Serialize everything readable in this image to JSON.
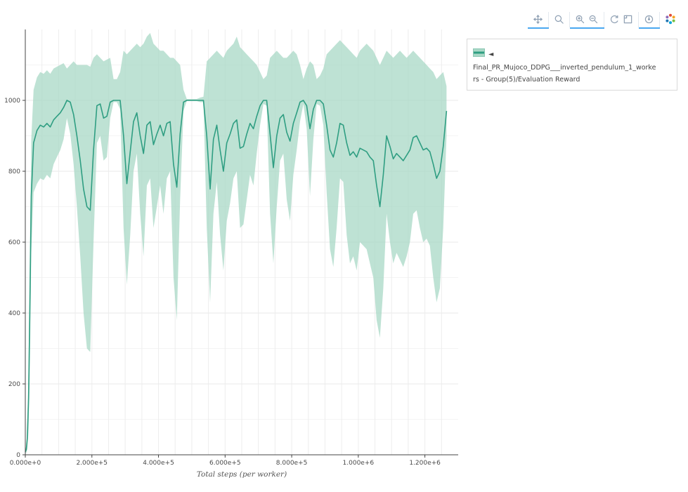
{
  "modebar": {
    "buttons": [
      {
        "name": "pan",
        "active": true
      },
      {
        "name": "box-zoom",
        "active": false
      },
      {
        "name": "zoom-in",
        "active": true
      },
      {
        "name": "zoom-out",
        "active": true
      },
      {
        "name": "autoscale",
        "active": false
      },
      {
        "name": "reset-axes",
        "active": false
      },
      {
        "name": "hover-closest",
        "active": true
      },
      {
        "name": "plotly-logo",
        "active": false
      }
    ],
    "active_underline_color": "#4aa8f0",
    "icon_color": "#8fa0b3"
  },
  "legend": {
    "line1": "◄ Final_PR_Mujoco_DDPG___inverted_pendulum_1_worke",
    "line2": "rs - Group(5)/Evaluation Reward",
    "swatch_fill": "#a8d8c6",
    "swatch_line": "#2f9e82"
  },
  "chart_data": {
    "type": "line",
    "title": "",
    "xlabel": "Total steps (per worker)",
    "ylabel": "",
    "xlim": [
      0,
      1300000
    ],
    "ylim": [
      0,
      1200
    ],
    "grid": true,
    "legend_position": "outside-right",
    "minor_x_grid_step": 50000,
    "xticks": {
      "values": [
        0,
        200000,
        400000,
        600000,
        800000,
        1000000,
        1200000
      ],
      "labels": [
        "0.000e+0",
        "2.000e+5",
        "4.000e+5",
        "6.000e+5",
        "8.000e+5",
        "1.000e+6",
        "1.200e+6"
      ]
    },
    "yticks": {
      "values": [
        0,
        200,
        400,
        600,
        800,
        1000
      ],
      "labels": [
        "0",
        "200",
        "400",
        "600",
        "800",
        "1000"
      ]
    },
    "series": [
      {
        "name": "Final_PR_Mujoco_DDPG___inverted_pendulum_1_workers - Group(5)/Evaluation Reward",
        "line_color": "#2f9e82",
        "band_color": "#a8d8c6",
        "band_opacity": 0.75,
        "points_format": [
          "x",
          "mean",
          "band_low",
          "band_high"
        ],
        "points": [
          [
            0,
            8,
            3,
            13
          ],
          [
            3000,
            15,
            6,
            24
          ],
          [
            6000,
            45,
            15,
            80
          ],
          [
            10000,
            160,
            70,
            250
          ],
          [
            14000,
            430,
            260,
            600
          ],
          [
            18000,
            730,
            570,
            890
          ],
          [
            25000,
            880,
            740,
            1030
          ],
          [
            35000,
            915,
            765,
            1065
          ],
          [
            45000,
            930,
            780,
            1080
          ],
          [
            55000,
            925,
            775,
            1075
          ],
          [
            65000,
            935,
            790,
            1085
          ],
          [
            75000,
            925,
            780,
            1075
          ],
          [
            85000,
            945,
            820,
            1090
          ],
          [
            95000,
            955,
            840,
            1095
          ],
          [
            105000,
            965,
            860,
            1100
          ],
          [
            115000,
            980,
            890,
            1105
          ],
          [
            125000,
            1000,
            950,
            1090
          ],
          [
            135000,
            995,
            905,
            1100
          ],
          [
            145000,
            960,
            820,
            1110
          ],
          [
            155000,
            900,
            700,
            1100
          ],
          [
            165000,
            830,
            560,
            1100
          ],
          [
            175000,
            750,
            400,
            1100
          ],
          [
            185000,
            700,
            300,
            1100
          ],
          [
            195000,
            690,
            290,
            1095
          ],
          [
            205000,
            860,
            600,
            1120
          ],
          [
            215000,
            985,
            880,
            1130
          ],
          [
            225000,
            990,
            900,
            1120
          ],
          [
            235000,
            950,
            830,
            1110
          ],
          [
            245000,
            955,
            840,
            1115
          ],
          [
            255000,
            995,
            950,
            1120
          ],
          [
            265000,
            1000,
            995,
            1060
          ],
          [
            275000,
            1000,
            995,
            1060
          ],
          [
            285000,
            1000,
            975,
            1080
          ],
          [
            295000,
            900,
            640,
            1140
          ],
          [
            305000,
            765,
            480,
            1130
          ],
          [
            315000,
            855,
            620,
            1140
          ],
          [
            325000,
            940,
            800,
            1150
          ],
          [
            335000,
            965,
            850,
            1160
          ],
          [
            345000,
            900,
            680,
            1150
          ],
          [
            355000,
            850,
            560,
            1160
          ],
          [
            365000,
            930,
            760,
            1180
          ],
          [
            375000,
            940,
            780,
            1190
          ],
          [
            385000,
            875,
            640,
            1160
          ],
          [
            395000,
            905,
            700,
            1150
          ],
          [
            405000,
            930,
            760,
            1140
          ],
          [
            415000,
            900,
            680,
            1140
          ],
          [
            425000,
            935,
            780,
            1130
          ],
          [
            435000,
            940,
            800,
            1120
          ],
          [
            445000,
            820,
            500,
            1120
          ],
          [
            455000,
            755,
            380,
            1110
          ],
          [
            465000,
            905,
            720,
            1100
          ],
          [
            475000,
            995,
            970,
            1030
          ],
          [
            485000,
            1000,
            998,
            1004
          ],
          [
            495000,
            1000,
            998,
            1004
          ],
          [
            505000,
            1000,
            998,
            1004
          ],
          [
            515000,
            1000,
            998,
            1004
          ],
          [
            525000,
            1000,
            995,
            1008
          ],
          [
            535000,
            1000,
            995,
            1010
          ],
          [
            545000,
            900,
            640,
            1110
          ],
          [
            555000,
            750,
            430,
            1120
          ],
          [
            565000,
            890,
            680,
            1130
          ],
          [
            575000,
            930,
            770,
            1140
          ],
          [
            585000,
            860,
            620,
            1130
          ],
          [
            595000,
            800,
            520,
            1120
          ],
          [
            605000,
            880,
            660,
            1140
          ],
          [
            615000,
            905,
            710,
            1150
          ],
          [
            625000,
            935,
            780,
            1160
          ],
          [
            635000,
            945,
            800,
            1180
          ],
          [
            645000,
            865,
            640,
            1150
          ],
          [
            655000,
            870,
            650,
            1140
          ],
          [
            665000,
            905,
            720,
            1130
          ],
          [
            675000,
            935,
            790,
            1120
          ],
          [
            685000,
            920,
            760,
            1110
          ],
          [
            695000,
            955,
            850,
            1100
          ],
          [
            705000,
            985,
            930,
            1080
          ],
          [
            715000,
            1000,
            990,
            1060
          ],
          [
            725000,
            1000,
            985,
            1070
          ],
          [
            735000,
            905,
            680,
            1120
          ],
          [
            745000,
            810,
            540,
            1130
          ],
          [
            755000,
            900,
            700,
            1140
          ],
          [
            765000,
            950,
            830,
            1130
          ],
          [
            775000,
            960,
            850,
            1120
          ],
          [
            785000,
            910,
            720,
            1120
          ],
          [
            795000,
            885,
            660,
            1130
          ],
          [
            805000,
            935,
            790,
            1140
          ],
          [
            815000,
            965,
            860,
            1130
          ],
          [
            825000,
            995,
            940,
            1100
          ],
          [
            835000,
            1000,
            990,
            1060
          ],
          [
            845000,
            985,
            920,
            1090
          ],
          [
            855000,
            920,
            730,
            1110
          ],
          [
            865000,
            975,
            890,
            1100
          ],
          [
            875000,
            1000,
            990,
            1060
          ],
          [
            885000,
            1000,
            985,
            1070
          ],
          [
            895000,
            990,
            930,
            1090
          ],
          [
            905000,
            930,
            740,
            1130
          ],
          [
            915000,
            860,
            580,
            1140
          ],
          [
            925000,
            840,
            530,
            1150
          ],
          [
            935000,
            880,
            640,
            1160
          ],
          [
            945000,
            935,
            780,
            1170
          ],
          [
            955000,
            930,
            770,
            1160
          ],
          [
            965000,
            880,
            620,
            1150
          ],
          [
            975000,
            845,
            540,
            1140
          ],
          [
            985000,
            855,
            560,
            1130
          ],
          [
            995000,
            840,
            520,
            1120
          ],
          [
            1005000,
            865,
            600,
            1140
          ],
          [
            1015000,
            860,
            590,
            1150
          ],
          [
            1025000,
            855,
            580,
            1160
          ],
          [
            1035000,
            840,
            540,
            1150
          ],
          [
            1045000,
            830,
            500,
            1140
          ],
          [
            1055000,
            760,
            380,
            1120
          ],
          [
            1065000,
            700,
            330,
            1100
          ],
          [
            1075000,
            790,
            470,
            1120
          ],
          [
            1085000,
            900,
            680,
            1140
          ],
          [
            1095000,
            870,
            600,
            1130
          ],
          [
            1105000,
            835,
            540,
            1120
          ],
          [
            1115000,
            850,
            570,
            1130
          ],
          [
            1125000,
            840,
            550,
            1140
          ],
          [
            1135000,
            830,
            530,
            1130
          ],
          [
            1145000,
            845,
            560,
            1120
          ],
          [
            1155000,
            860,
            600,
            1130
          ],
          [
            1165000,
            895,
            680,
            1140
          ],
          [
            1175000,
            900,
            690,
            1130
          ],
          [
            1185000,
            880,
            640,
            1120
          ],
          [
            1195000,
            860,
            600,
            1110
          ],
          [
            1205000,
            865,
            610,
            1100
          ],
          [
            1215000,
            855,
            590,
            1090
          ],
          [
            1225000,
            820,
            500,
            1080
          ],
          [
            1235000,
            780,
            430,
            1060
          ],
          [
            1245000,
            800,
            470,
            1070
          ],
          [
            1255000,
            870,
            640,
            1080
          ],
          [
            1265000,
            970,
            900,
            1040
          ]
        ]
      }
    ]
  }
}
